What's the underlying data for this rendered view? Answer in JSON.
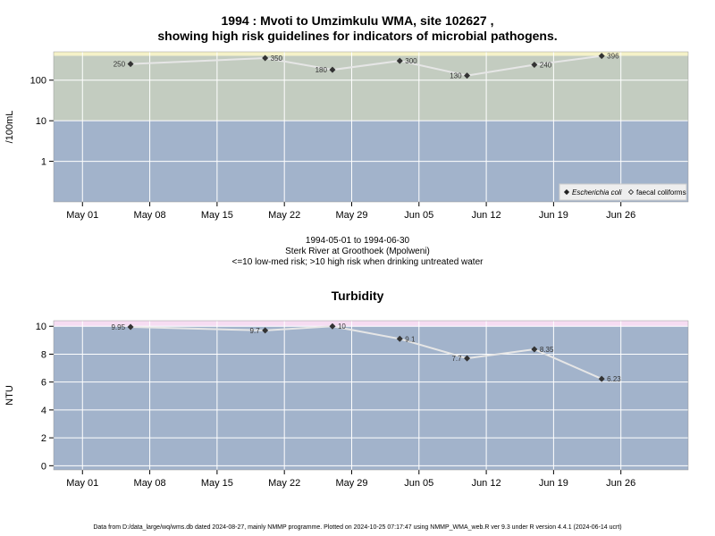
{
  "page": {
    "title_line1": "1994 : Mvoti to Umzimkulu WMA, site 102627 ,",
    "title_line2": "showing high risk guidelines for indicators of microbial pathogens.",
    "mid_line1": "1994-05-01 to 1994-06-30",
    "mid_line2": "Sterk River at Groothoek (Mpolweni)",
    "mid_line3": "<=10 low-med risk; >10 high risk when drinking untreated water",
    "footer": "Data from D:/data_large/wq/wms.db dated 2024-08-27, mainly NMMP programme. Plotted on 2024-10-25 07:17:47 using NMMP_WMA_web.R ver 9.3 under R version 4.4.1 (2024-06-14 ucrt)"
  },
  "chart_data": [
    {
      "type": "line",
      "title": "",
      "ylabel": "/100mL",
      "xlabel": "",
      "y_scale": "log",
      "ylim": [
        0.1,
        500
      ],
      "y_ticks": [
        {
          "v": 1,
          "label": "1"
        },
        {
          "v": 10,
          "label": "10"
        },
        {
          "v": 100,
          "label": "100"
        }
      ],
      "x_range": [
        "1994-04-28",
        "1994-07-03"
      ],
      "x_ticks": [
        {
          "d": "1994-05-01",
          "label": "May 01"
        },
        {
          "d": "1994-05-08",
          "label": "May 08"
        },
        {
          "d": "1994-05-15",
          "label": "May 15"
        },
        {
          "d": "1994-05-22",
          "label": "May 22"
        },
        {
          "d": "1994-05-29",
          "label": "May 29"
        },
        {
          "d": "1994-06-05",
          "label": "Jun 05"
        },
        {
          "d": "1994-06-12",
          "label": "Jun 12"
        },
        {
          "d": "1994-06-19",
          "label": "Jun 19"
        },
        {
          "d": "1994-06-26",
          "label": "Jun 26"
        }
      ],
      "bands": [
        {
          "from": 0.1,
          "to": 10,
          "color": "#a2b3cb"
        },
        {
          "from": 10,
          "to": 400,
          "color": "#c3ccc0"
        },
        {
          "from": 400,
          "to": 500,
          "color": "#f5f2c8"
        }
      ],
      "series": [
        {
          "name": "Escherichia coli",
          "marker": "filled-diamond",
          "points": [
            {
              "x": "1994-05-06",
              "y": 250,
              "label": "250"
            },
            {
              "x": "1994-05-20",
              "y": 350,
              "label": "350"
            },
            {
              "x": "1994-05-27",
              "y": 180,
              "label": "180"
            },
            {
              "x": "1994-06-03",
              "y": 300,
              "label": "300"
            },
            {
              "x": "1994-06-10",
              "y": 130,
              "label": "130"
            },
            {
              "x": "1994-06-17",
              "y": 240,
              "label": "240"
            },
            {
              "x": "1994-06-24",
              "y": 396,
              "label": "396"
            }
          ]
        }
      ],
      "legend": {
        "placement": "bottom-right",
        "items": [
          {
            "label": "Escherichia coli",
            "marker": "filled-diamond",
            "italic": true
          },
          {
            "label": "faecal coliforms",
            "marker": "open-diamond",
            "italic": false
          }
        ]
      },
      "colors": {
        "line": "#e6e6e6",
        "marker": "#333333",
        "grid": "#ffffff"
      }
    },
    {
      "type": "line",
      "title": "Turbidity",
      "ylabel": "NTU",
      "xlabel": "",
      "y_scale": "linear",
      "ylim": [
        -0.3,
        10.4
      ],
      "y_ticks": [
        {
          "v": 0,
          "label": "0"
        },
        {
          "v": 2,
          "label": "2"
        },
        {
          "v": 4,
          "label": "4"
        },
        {
          "v": 6,
          "label": "6"
        },
        {
          "v": 8,
          "label": "8"
        },
        {
          "v": 10,
          "label": "10"
        }
      ],
      "x_range": [
        "1994-04-28",
        "1994-07-03"
      ],
      "x_ticks": [
        {
          "d": "1994-05-01",
          "label": "May 01"
        },
        {
          "d": "1994-05-08",
          "label": "May 08"
        },
        {
          "d": "1994-05-15",
          "label": "May 15"
        },
        {
          "d": "1994-05-22",
          "label": "May 22"
        },
        {
          "d": "1994-05-29",
          "label": "May 29"
        },
        {
          "d": "1994-06-05",
          "label": "Jun 05"
        },
        {
          "d": "1994-06-12",
          "label": "Jun 12"
        },
        {
          "d": "1994-06-19",
          "label": "Jun 19"
        },
        {
          "d": "1994-06-26",
          "label": "Jun 26"
        }
      ],
      "bands": [
        {
          "from": -0.3,
          "to": 10,
          "color": "#a2b3cb"
        },
        {
          "from": 10,
          "to": 10.4,
          "color": "#f6dcf2"
        }
      ],
      "series": [
        {
          "name": "",
          "marker": "filled-diamond",
          "points": [
            {
              "x": "1994-05-06",
              "y": 9.95,
              "label": "9.95"
            },
            {
              "x": "1994-05-20",
              "y": 9.7,
              "label": "9.7"
            },
            {
              "x": "1994-05-27",
              "y": 10,
              "label": "10"
            },
            {
              "x": "1994-06-03",
              "y": 9.1,
              "label": "9.1"
            },
            {
              "x": "1994-06-10",
              "y": 7.7,
              "label": "7.7"
            },
            {
              "x": "1994-06-17",
              "y": 8.35,
              "label": "8.35"
            },
            {
              "x": "1994-06-24",
              "y": 6.23,
              "label": "6.23"
            }
          ]
        }
      ],
      "colors": {
        "line": "#e6e6e6",
        "marker": "#333333",
        "grid": "#ffffff"
      }
    }
  ]
}
